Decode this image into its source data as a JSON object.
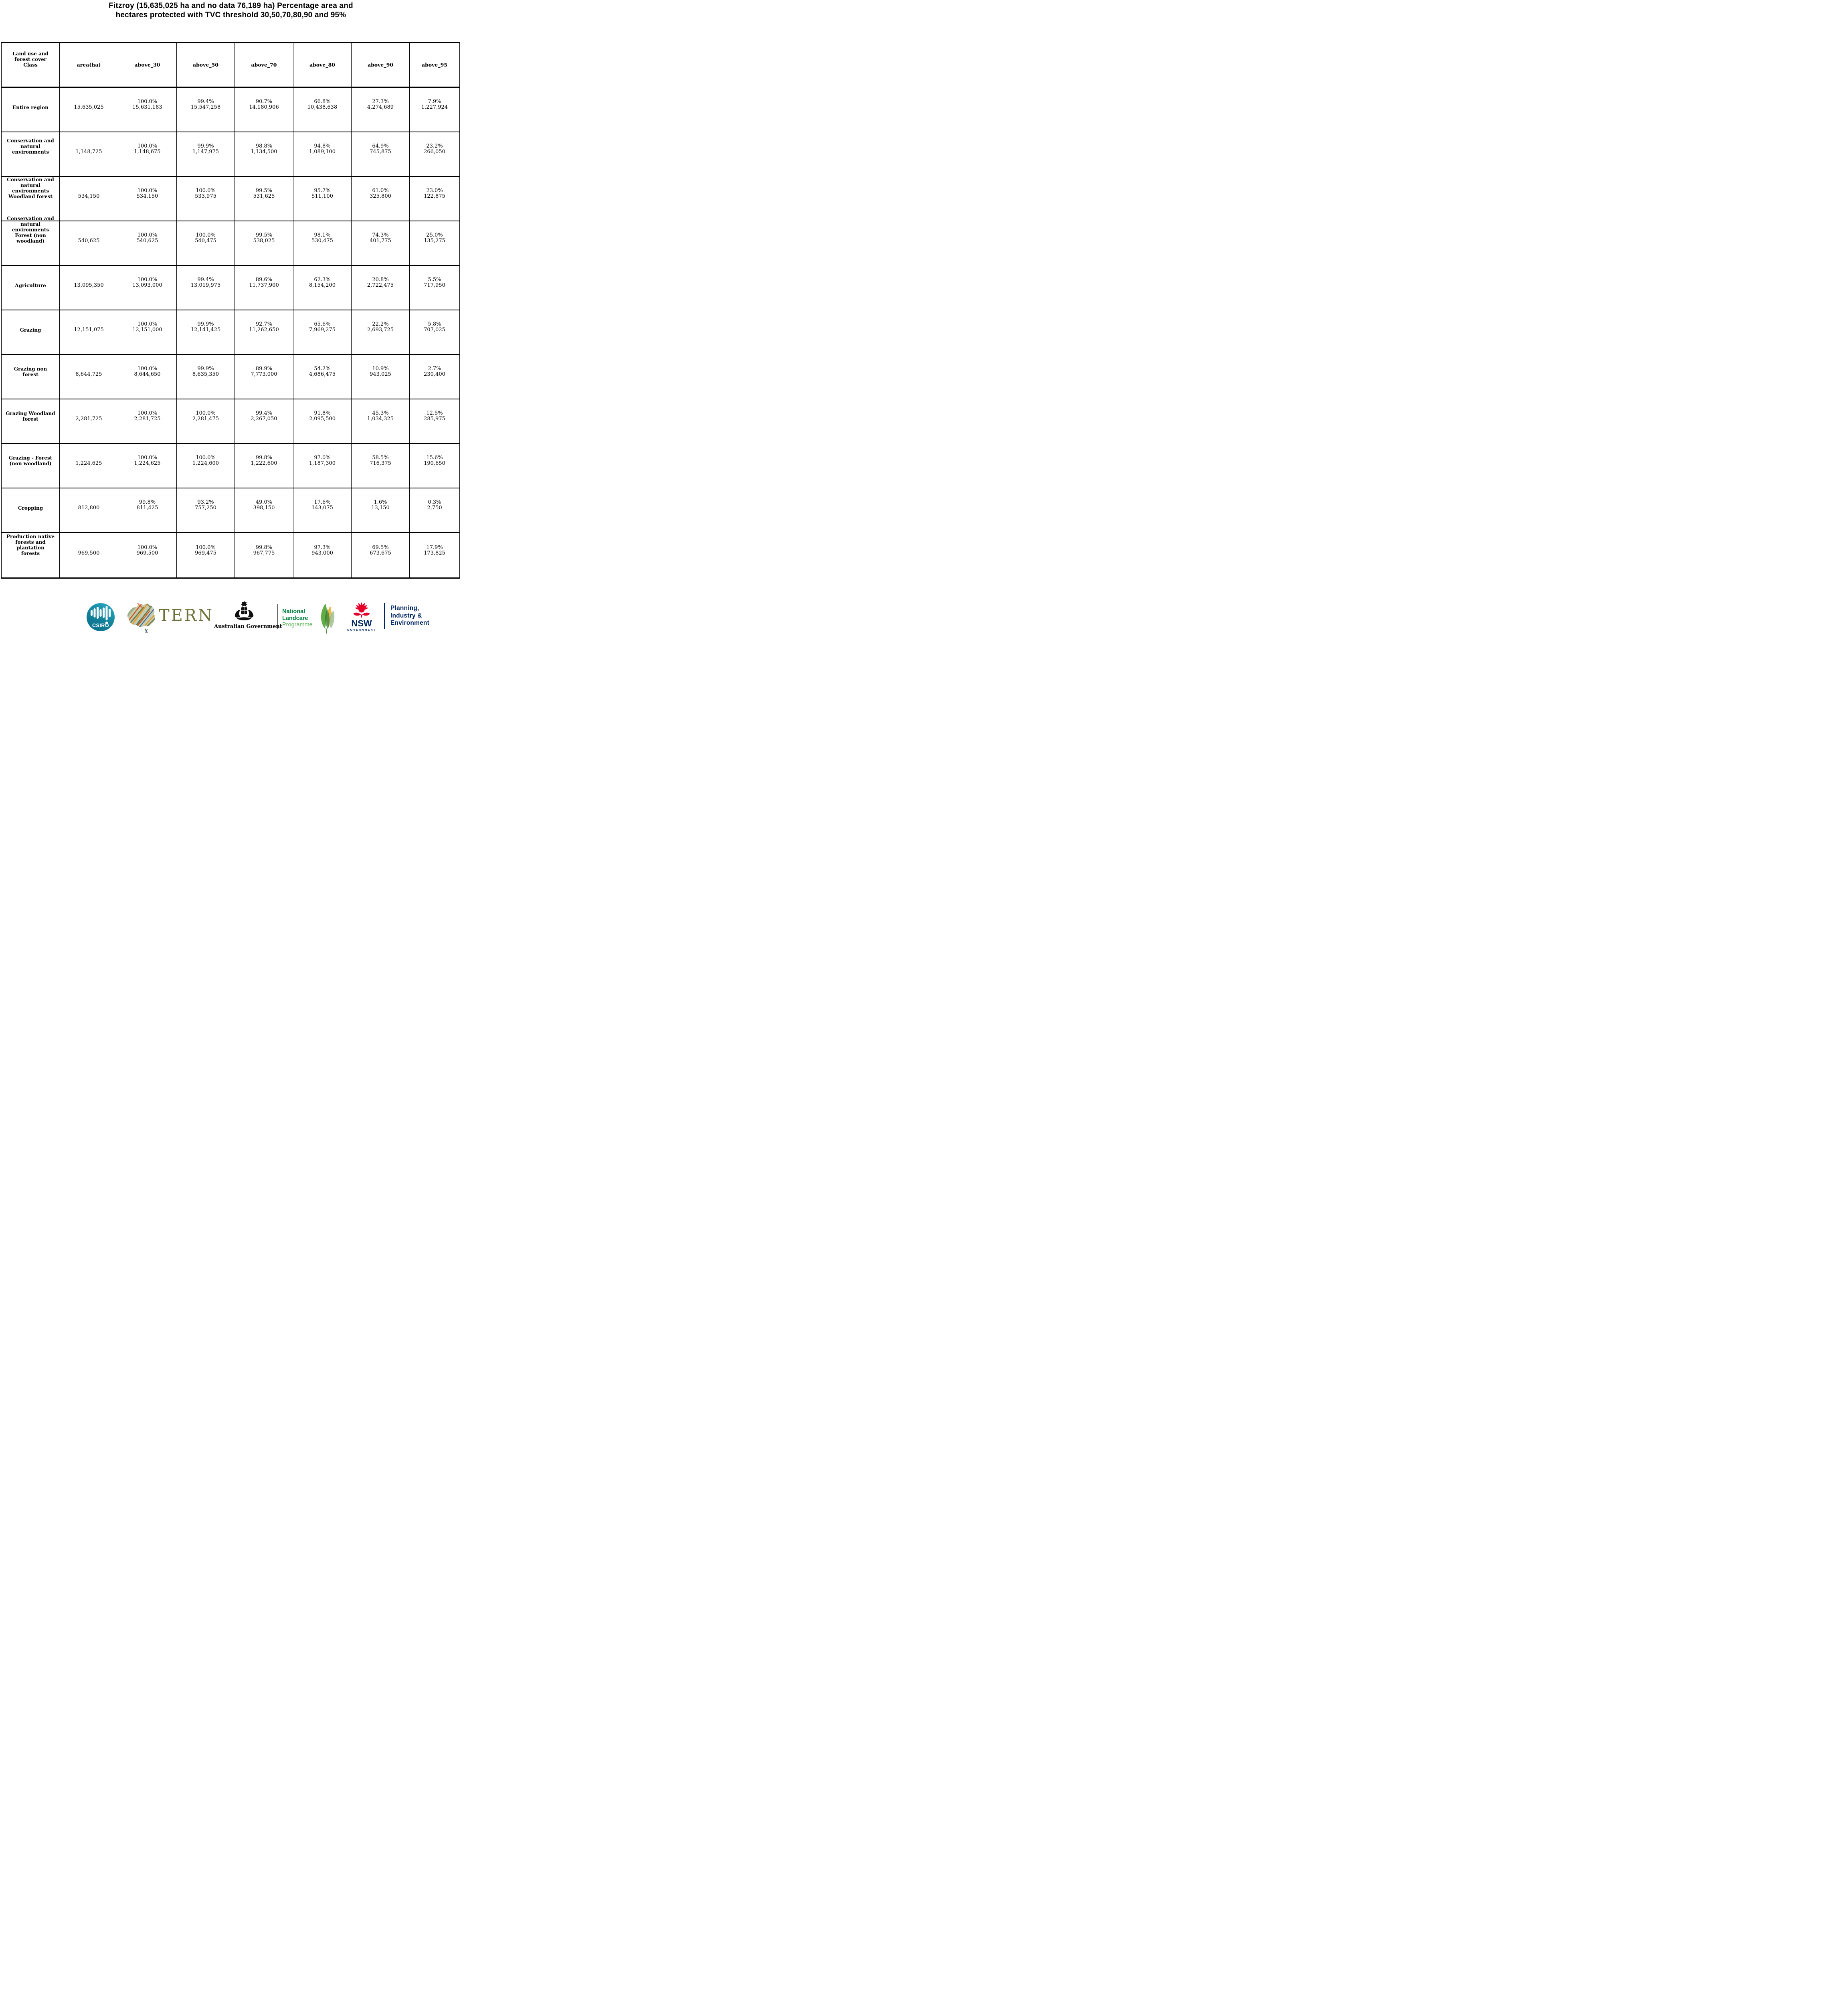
{
  "title": {
    "line1": "Fitzroy (15,635,025 ha and no data 76,189 ha) Percentage area and",
    "line2": "hectares protected with TVC threshold 30,50,70,80,90 and 95%"
  },
  "table": {
    "columns": [
      "Land use and\nforest cover\nClass",
      "area(ha)",
      "above_30",
      "above_50",
      "above_70",
      "above_80",
      "above_90",
      "above_95"
    ],
    "rows": [
      {
        "label": "Entire region",
        "area": "15,635,025",
        "values": [
          {
            "pct": "100.0%",
            "ha": "15,631,183"
          },
          {
            "pct": "99.4%",
            "ha": "15,547,258"
          },
          {
            "pct": "90.7%",
            "ha": "14,180,906"
          },
          {
            "pct": "66.8%",
            "ha": "10,438,638"
          },
          {
            "pct": "27.3%",
            "ha": "4,274,689"
          },
          {
            "pct": "7.9%",
            "ha": "1,227,924"
          }
        ]
      },
      {
        "label": "Conservation and\nnatural\nenvironments",
        "area": "1,148,725",
        "values": [
          {
            "pct": "100.0%",
            "ha": "1,148,675"
          },
          {
            "pct": "99.9%",
            "ha": "1,147,975"
          },
          {
            "pct": "98.8%",
            "ha": "1,134,500"
          },
          {
            "pct": "94.8%",
            "ha": "1,089,100"
          },
          {
            "pct": "64.9%",
            "ha": "745,875"
          },
          {
            "pct": "23.2%",
            "ha": "266,050"
          }
        ]
      },
      {
        "label": "Conservation and\nnatural\nenvironments\nWoodland forest",
        "area": "534,150",
        "values": [
          {
            "pct": "100.0%",
            "ha": "534,150"
          },
          {
            "pct": "100.0%",
            "ha": "533,975"
          },
          {
            "pct": "99.5%",
            "ha": "531,625"
          },
          {
            "pct": "95.7%",
            "ha": "511,100"
          },
          {
            "pct": "61.0%",
            "ha": "325,800"
          },
          {
            "pct": "23.0%",
            "ha": "122,875"
          }
        ]
      },
      {
        "label": "Conservation and\nnatural\nenvironments\nForest (non\nwoodland)",
        "area": "540,625",
        "values": [
          {
            "pct": "100.0%",
            "ha": "540,625"
          },
          {
            "pct": "100.0%",
            "ha": "540,475"
          },
          {
            "pct": "99.5%",
            "ha": "538,025"
          },
          {
            "pct": "98.1%",
            "ha": "530,475"
          },
          {
            "pct": "74.3%",
            "ha": "401,775"
          },
          {
            "pct": "25.0%",
            "ha": "135,275"
          }
        ]
      },
      {
        "label": "Agriculture",
        "area": "13,095,350",
        "values": [
          {
            "pct": "100.0%",
            "ha": "13,093,000"
          },
          {
            "pct": "99.4%",
            "ha": "13,019,975"
          },
          {
            "pct": "89.6%",
            "ha": "11,737,900"
          },
          {
            "pct": "62.3%",
            "ha": "8,154,200"
          },
          {
            "pct": "20.8%",
            "ha": "2,722,475"
          },
          {
            "pct": "5.5%",
            "ha": "717,950"
          }
        ]
      },
      {
        "label": "Grazing",
        "area": "12,151,075",
        "values": [
          {
            "pct": "100.0%",
            "ha": "12,151,000"
          },
          {
            "pct": "99.9%",
            "ha": "12,141,425"
          },
          {
            "pct": "92.7%",
            "ha": "11,262,650"
          },
          {
            "pct": "65.6%",
            "ha": "7,969,275"
          },
          {
            "pct": "22.2%",
            "ha": "2,693,725"
          },
          {
            "pct": "5.8%",
            "ha": "707,025"
          }
        ]
      },
      {
        "label": "Grazing non\nforest",
        "area": "8,644,725",
        "values": [
          {
            "pct": "100.0%",
            "ha": "8,644,650"
          },
          {
            "pct": "99.9%",
            "ha": "8,635,350"
          },
          {
            "pct": "89.9%",
            "ha": "7,773,000"
          },
          {
            "pct": "54.2%",
            "ha": "4,686,475"
          },
          {
            "pct": "10.9%",
            "ha": "943,025"
          },
          {
            "pct": "2.7%",
            "ha": "230,400"
          }
        ]
      },
      {
        "label": "Grazing Woodland\nforest",
        "area": "2,281,725",
        "values": [
          {
            "pct": "100.0%",
            "ha": "2,281,725"
          },
          {
            "pct": "100.0%",
            "ha": "2,281,475"
          },
          {
            "pct": "99.4%",
            "ha": "2,267,050"
          },
          {
            "pct": "91.8%",
            "ha": "2,095,500"
          },
          {
            "pct": "45.3%",
            "ha": "1,034,325"
          },
          {
            "pct": "12.5%",
            "ha": "285,975"
          }
        ]
      },
      {
        "label": "Grazing - Forest\n(non woodland)",
        "area": "1,224,625",
        "values": [
          {
            "pct": "100.0%",
            "ha": "1,224,625"
          },
          {
            "pct": "100.0%",
            "ha": "1,224,600"
          },
          {
            "pct": "99.8%",
            "ha": "1,222,600"
          },
          {
            "pct": "97.0%",
            "ha": "1,187,300"
          },
          {
            "pct": "58.5%",
            "ha": "716,375"
          },
          {
            "pct": "15.6%",
            "ha": "190,650"
          }
        ]
      },
      {
        "label": "Cropping",
        "area": "812,800",
        "values": [
          {
            "pct": "99.8%",
            "ha": "811,425"
          },
          {
            "pct": "93.2%",
            "ha": "757,250"
          },
          {
            "pct": "49.0%",
            "ha": "398,150"
          },
          {
            "pct": "17.6%",
            "ha": "143,075"
          },
          {
            "pct": "1.6%",
            "ha": "13,150"
          },
          {
            "pct": "0.3%",
            "ha": "2,750"
          }
        ]
      },
      {
        "label": "Production native\nforests and\nplantation\nforests",
        "area": "969,500",
        "values": [
          {
            "pct": "100.0%",
            "ha": "969,500"
          },
          {
            "pct": "100.0%",
            "ha": "969,475"
          },
          {
            "pct": "99.8%",
            "ha": "967,775"
          },
          {
            "pct": "97.3%",
            "ha": "943,000"
          },
          {
            "pct": "69.5%",
            "ha": "673,675"
          },
          {
            "pct": "17.9%",
            "ha": "173,825"
          }
        ]
      }
    ]
  },
  "footer": {
    "csiro": {
      "label": "CSIRO",
      "teal_top": "#2cadc9",
      "teal_bottom": "#0a6e8c"
    },
    "tern": {
      "label": "TERN",
      "olive": "#6c7239"
    },
    "australian_government": {
      "label": "Australian Government"
    },
    "landcare": {
      "line1": "National",
      "line2": "Landcare",
      "line3": "Programme",
      "dark_green": "#00813f",
      "light_green": "#5cb457"
    },
    "nsw": {
      "label": "NSW",
      "sublabel": "GOVERNMENT",
      "navy": "#002664",
      "red": "#e4002b"
    },
    "planning": {
      "line1": "Planning,",
      "line2": "Industry &",
      "line3": "Environment"
    }
  }
}
